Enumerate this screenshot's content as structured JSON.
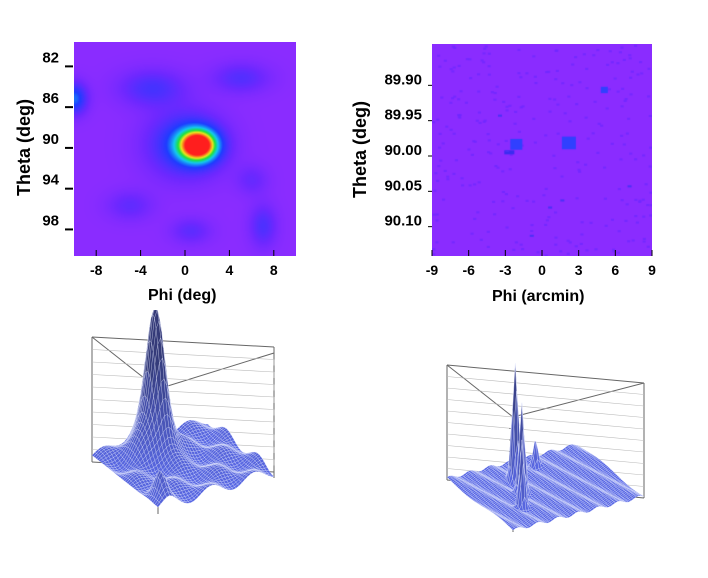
{
  "chart_data": [
    {
      "type": "heatmap",
      "name": "top-left",
      "title": "",
      "xlabel": "Phi (deg)",
      "ylabel": "Theta (deg)",
      "xlim": [
        -10,
        10
      ],
      "ylim": [
        80,
        101
      ],
      "xticks": [
        "-8",
        "-4",
        "0",
        "4",
        "8"
      ],
      "yticks": [
        "82",
        "86",
        "90",
        "94",
        "98"
      ],
      "peaks": [
        {
          "x": 1.0,
          "y": 90.0,
          "amp": 1.0
        },
        {
          "x": -10.0,
          "y": 86.0,
          "amp": 0.4
        },
        {
          "x": 7.0,
          "y": 98.0,
          "amp": 0.25
        }
      ]
    },
    {
      "type": "heatmap",
      "name": "top-right",
      "title": "",
      "xlabel": "Phi (arcmin)",
      "ylabel": "Theta (deg)",
      "xlim": [
        -9,
        9
      ],
      "ylim": [
        89.85,
        90.15
      ],
      "xticks": [
        "-9",
        "-6",
        "-3",
        "0",
        "3",
        "6",
        "9"
      ],
      "yticks": [
        "89.90",
        "89.95",
        "90.00",
        "90.05",
        "90.10"
      ],
      "peaks": [
        {
          "x": -2.0,
          "y": 89.99,
          "amp": 0.7
        },
        {
          "x": 2.2,
          "y": 89.99,
          "amp": 1.0
        },
        {
          "x": 5.0,
          "y": 89.915,
          "amp": 0.35
        }
      ]
    },
    {
      "type": "surface",
      "name": "bottom-left",
      "description_of": "3D lego view of the top-left map"
    },
    {
      "type": "surface",
      "name": "bottom-right",
      "description_of": "3D lego view of the top-right map"
    }
  ],
  "colors": {
    "background": "#8a2cff",
    "blue": "#1d3cff",
    "green": "#20e040",
    "yellow": "#f0e020",
    "red": "#ff2020",
    "surface": "#4a58c8"
  }
}
